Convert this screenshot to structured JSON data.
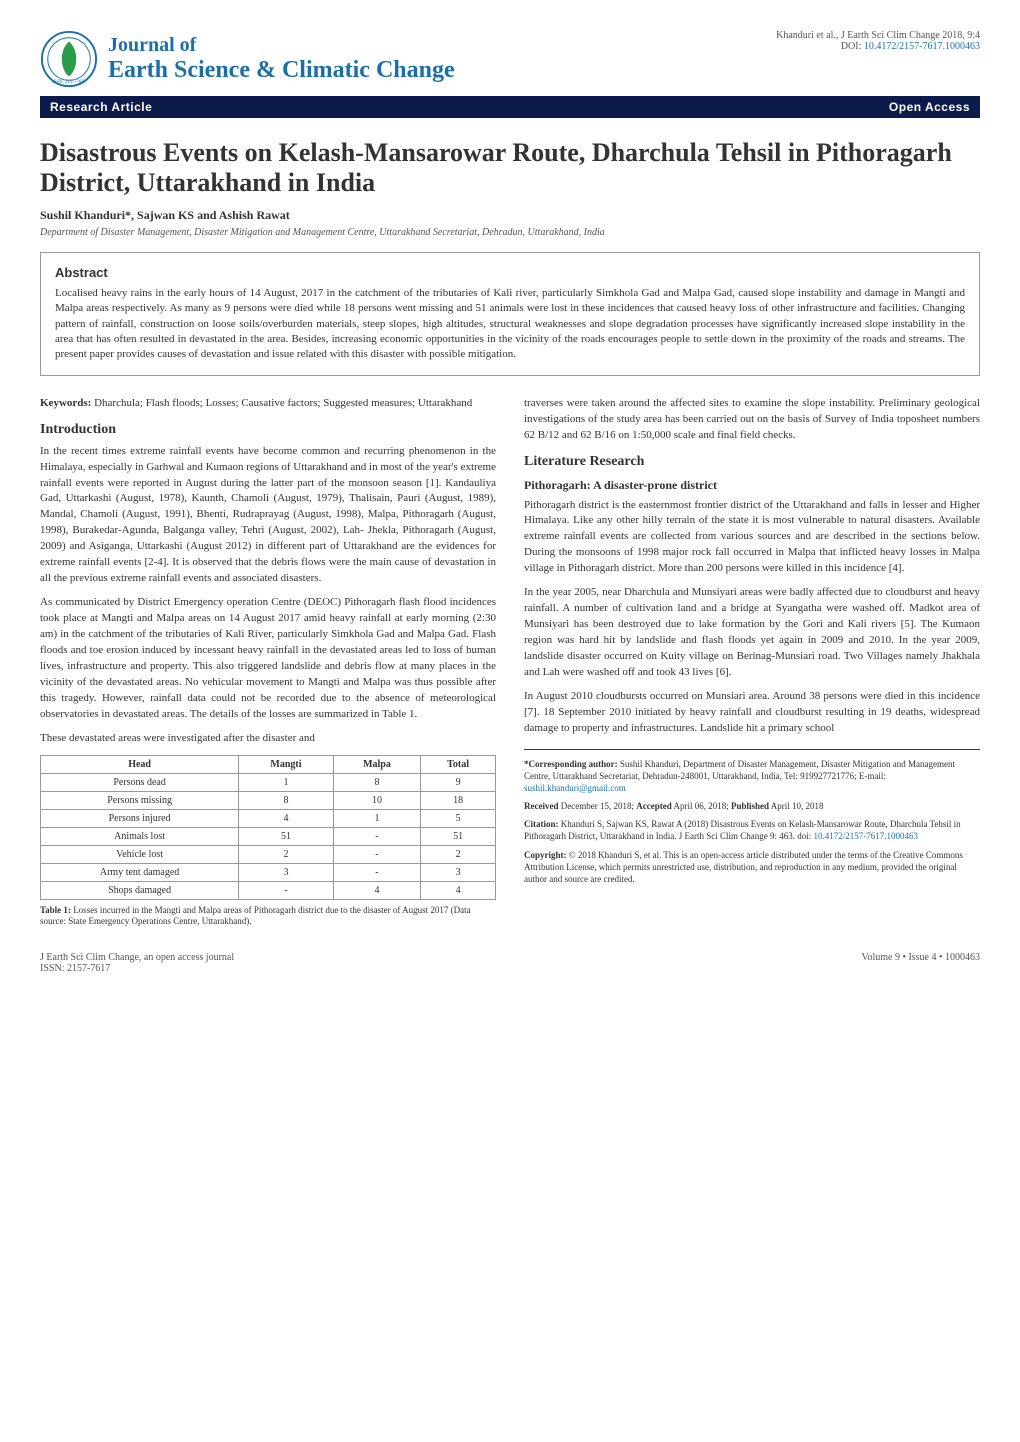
{
  "header": {
    "journal_of": "Journal of",
    "journal_name": "Earth Science & Climatic Change",
    "citation": "Khanduri et al., J Earth Sci Clim Change 2018, 9:4",
    "doi_label": "DOI: ",
    "doi": "10.4172/2157-7617.1000463"
  },
  "bar": {
    "left": "Research Article",
    "right": "Open Access"
  },
  "title": "Disastrous Events on Kelash-Mansarowar Route, Dharchula Tehsil in Pithoragarh District, Uttarakhand in India",
  "authors": "Sushil Khanduri*, Sajwan KS and Ashish Rawat",
  "affiliation": "Department of Disaster Management, Disaster Mitigation and Management Centre, Uttarakhand Secretariat, Dehradun, Uttarakhand, India",
  "abstract": {
    "heading": "Abstract",
    "text": "Localised heavy rains in the early hours of 14 August, 2017 in the catchment of the tributaries of Kali river, particularly Simkhola Gad and Malpa Gad, caused slope instability and damage in Mangti and Malpa areas respectively. As many as 9 persons were died while 18 persons went missing and 51 animals were lost in these incidences that caused heavy loss of other infrastructure and facilities. Changing pattern of rainfall, construction on loose soils/overburden materials, steep slopes, high altitudes, structural weaknesses and slope degradation processes have significantly increased slope instability in the area that has often resulted in devastated in the area. Besides, increasing economic opportunities in the vicinity of the roads encourages people to settle down in the proximity of the roads and streams. The present paper provides causes of devastation and issue related with this disaster with possible mitigation."
  },
  "keywords": {
    "label": "Keywords:",
    "text": " Dharchula; Flash floods; Losses; Causative factors; Suggested measures; Uttarakhand"
  },
  "introduction": {
    "heading": "Introduction",
    "p1": "In the recent times extreme rainfall events have become common and recurring phenomenon in the Himalaya, especially in Garhwal and Kumaon regions of Uttarakhand and in most of the year's extreme rainfall events were reported in August during the latter part of the monsoon season [1]. Kandauliya Gad, Uttarkashi (August, 1978), Kaunth, Chamoli (August, 1979), Thalisain, Pauri (August, 1989), Mandal, Chamoli (August, 1991), Bhenti, Rudraprayag (August, 1998), Malpa, Pithoragarh (August, 1998), Burakedar-Agunda, Balganga valley, Tehri (August, 2002), Lah- Jhekla, Pithoragarh (August, 2009) and Asiganga, Uttarkashi (August 2012) in different part of Uttarakhand are the evidences for extreme rainfall events [2-4]. It is observed that the debris flows were the main cause of devastation in all the previous extreme rainfall events and associated disasters.",
    "p2": "As communicated by District Emergency operation Centre (DEOC) Pithoragarh flash flood incidences took place at Mangti and Malpa areas on 14 August 2017 amid heavy rainfall at early morning (2:30 am) in the catchment of the tributaries of Kali River, particularly Simkhola Gad and Malpa Gad. Flash floods and toe erosion induced by incessant heavy rainfall in the devastated areas led to loss of human lives, infrastructure and property. This also triggered landslide and debris flow at many places in the vicinity of the devastated areas. No vehicular movement to Mangti and Malpa was thus possible after this tragedy. However, rainfall data could not be recorded due to the absence of meteorological observatories in devastated areas. The details of the losses are summarized in Table 1.",
    "p3": "These devastated areas were investigated after the disaster and"
  },
  "table1": {
    "columns": [
      "Head",
      "Mangti",
      "Malpa",
      "Total"
    ],
    "rows": [
      [
        "Persons dead",
        "1",
        "8",
        "9"
      ],
      [
        "Persons missing",
        "8",
        "10",
        "18"
      ],
      [
        "Persons injured",
        "4",
        "1",
        "5"
      ],
      [
        "Animals lost",
        "51",
        "-",
        "51"
      ],
      [
        "Vehicle lost",
        "2",
        "-",
        "2"
      ],
      [
        "Army tent damaged",
        "3",
        "-",
        "3"
      ],
      [
        "Shops damaged",
        "-",
        "4",
        "4"
      ]
    ],
    "caption_label": "Table 1:",
    "caption_text": " Losses incurred in the Mangti and Malpa areas of Pithoragarh district due to the disaster of August 2017 (Data source: State Emergency Operations Centre, Uttarakhand)."
  },
  "col2_intro_cont": "traverses were taken around the affected sites to examine the slope instability. Preliminary geological investigations of the study area has been carried out on the basis of Survey of India toposheet numbers 62 B/12 and 62 B/16 on 1:50,000 scale and final field checks.",
  "lit": {
    "heading": "Literature Research",
    "sub": "Pithoragarh: A disaster-prone district",
    "p1": "Pithoragarh district is the easternmost frontier district of the Uttarakhand and falls in lesser and Higher Himalaya. Like any other hilly terrain of the state it is most vulnerable to natural disasters. Available extreme rainfall events are collected from various sources and are described in the sections below. During the monsoons of 1998 major rock fall occurred in Malpa that inflicted heavy losses in Malpa village in Pithoragarh district. More than 200 persons were killed in this incidence [4].",
    "p2": "In the year 2005, near Dharchula and Munsiyari areas were badly affected due to cloudburst and heavy rainfall. A number of cultivation land and a bridge at Syangatha were washed off. Madkot area of Munsiyari has been destroyed due to lake formation by the Gori and Kali rivers [5]. The Kumaon region was hard hit by landslide and flash floods yet again in 2009 and 2010. In the year 2009, landslide disaster occurred on Kuity village on Berinag-Munsiari road. Two Villages namely Jhakhala and Lah were washed off and took 43 lives [6].",
    "p3": "In August 2010 cloudbursts occurred on Munsiari area. Around 38 persons were died in this incidence [7]. 18 September 2010 initiated by heavy rainfall and cloudburst resulting in 19 deaths, widespread damage to property and infrastructures. Landslide hit a primary school"
  },
  "corresponding": {
    "label": "*Corresponding author:",
    "text": " Sushil Khanduri, Department of Disaster Management, Disaster Mitigation and Management Centre, Uttarakhand Secretariat, Dehradun-248001, Uttarakhand, India, Tel: 919927721776; E-mail: ",
    "email": "sushil.khanduri@gmail.com"
  },
  "dates": {
    "received_label": "Received",
    "received": " December 15, 2018; ",
    "accepted_label": "Accepted",
    "accepted": " April 06, 2018; ",
    "published_label": "Published",
    "published": " April 10, 2018"
  },
  "citation_block": {
    "label": "Citation:",
    "text": " Khanduri S, Sajwan KS, Rawat A (2018) Disastrous Events on Kelash-Mansarowar Route, Dharchula Tehsil in Pithoragarh District, Uttarakhand in India. J Earth Sci Clim Change 9: 463. doi: ",
    "doi": "10.4172/2157-7617.1000463"
  },
  "copyright": {
    "label": "Copyright:",
    "text": " © 2018 Khanduri S, et al. This is an open-access article distributed under the terms of the Creative Commons Attribution License, which permits unrestricted use, distribution, and reproduction in any medium, provided the original author and source are credited."
  },
  "footer": {
    "left1": "J Earth Sci Clim Change, an open access journal",
    "left2": "ISSN: 2157-7617",
    "right": "Volume 9 • Issue 4 • 1000463"
  },
  "style": {
    "brand_color": "#1a6fa8",
    "bar_bg": "#0d1b4c",
    "text_color": "#333333",
    "border_color": "#999999",
    "body_font_size": 11,
    "title_font_size": 26
  }
}
